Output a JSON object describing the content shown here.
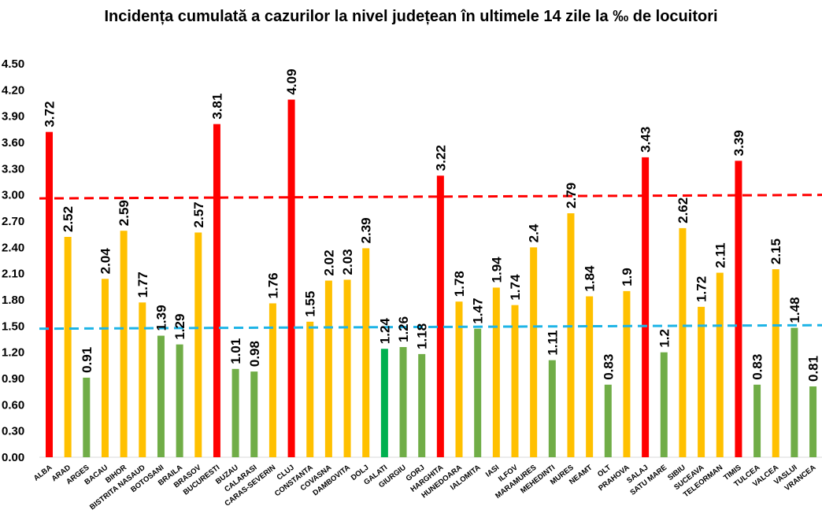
{
  "chart_data": {
    "type": "bar",
    "title": "Incidența cumulată a cazurilor la nivel județean în ultimele 14 zile la ‰ de locuitori",
    "xlabel": "",
    "ylabel": "",
    "ylim": [
      0,
      4.5
    ],
    "yticks": [
      "0.00",
      "0.30",
      "0.60",
      "0.90",
      "1.20",
      "1.50",
      "1.80",
      "2.10",
      "2.40",
      "2.70",
      "3.00",
      "3.30",
      "3.60",
      "3.90",
      "4.20",
      "4.50"
    ],
    "grid": false,
    "legend": "none",
    "colors": {
      "red": "#ff0000",
      "yellow": "#ffc000",
      "green": "#70ad47",
      "darkgreen": "#00b050",
      "threshold_high": "#ff0000",
      "threshold_low": "#1eb4e6"
    },
    "categories": [
      "ALBA",
      "ARAD",
      "ARGES",
      "BACAU",
      "BIHOR",
      "BISTRITA NASAUD",
      "BOTOSANI",
      "BRAILA",
      "BRASOV",
      "BUCURESTI",
      "BUZAU",
      "CALARASI",
      "CARAS-SEVERIN",
      "CLUJ",
      "CONSTANTA",
      "COVASNA",
      "DAMBOVITA",
      "DOLJ",
      "GALATI",
      "GIURGIU",
      "GORJ",
      "HARGHITA",
      "HUNEDOARA",
      "IALOMITA",
      "IASI",
      "ILFOV",
      "MARAMURES",
      "MEHEDINTI",
      "MURES",
      "NEAMT",
      "OLT",
      "PRAHOVA",
      "SALAJ",
      "SATU MARE",
      "SIBIU",
      "SUCEAVA",
      "TELEORMAN",
      "TIMIS",
      "TULCEA",
      "VALCEA",
      "VASLUI",
      "VRANCEA"
    ],
    "values": [
      3.72,
      2.52,
      0.91,
      2.04,
      2.59,
      1.77,
      1.39,
      1.29,
      2.57,
      3.81,
      1.01,
      0.98,
      1.76,
      4.09,
      1.55,
      2.02,
      2.03,
      2.39,
      1.24,
      1.26,
      1.18,
      3.22,
      1.78,
      1.47,
      1.94,
      1.74,
      2.4,
      1.11,
      2.79,
      1.84,
      0.83,
      1.9,
      3.43,
      1.2,
      2.62,
      1.72,
      2.11,
      3.39,
      0.83,
      2.15,
      1.48,
      0.81
    ],
    "labels": [
      "3.72",
      "2.52",
      "0.91",
      "2.04",
      "2.59",
      "1.77",
      "1.39",
      "1.29",
      "2.57",
      "3.81",
      "1.01",
      "0.98",
      "1.76",
      "4.09",
      "1.55",
      "2.02",
      "2.03",
      "2.39",
      "1.24",
      "1.26",
      "1.18",
      "3.22",
      "1.78",
      "1.47",
      "1.94",
      "1.74",
      "2.4",
      "1.11",
      "2.79",
      "1.84",
      "0.83",
      "1.9",
      "3.43",
      "1.2",
      "2.62",
      "1.72",
      "2.11",
      "3.39",
      "0.83",
      "2.15",
      "1.48",
      "0.81"
    ],
    "bar_colors": [
      "red",
      "yellow",
      "green",
      "yellow",
      "yellow",
      "yellow",
      "green",
      "green",
      "yellow",
      "red",
      "green",
      "green",
      "yellow",
      "red",
      "yellow",
      "yellow",
      "yellow",
      "yellow",
      "darkgreen",
      "green",
      "green",
      "red",
      "yellow",
      "green",
      "yellow",
      "yellow",
      "yellow",
      "green",
      "yellow",
      "yellow",
      "green",
      "yellow",
      "red",
      "green",
      "yellow",
      "yellow",
      "yellow",
      "red",
      "green",
      "yellow",
      "green",
      "green"
    ],
    "reference_lines": [
      {
        "style": "dashed",
        "color": "threshold_high",
        "y_start": 2.96,
        "y_end": 3.0
      },
      {
        "style": "dashed",
        "color": "threshold_low",
        "y_start": 1.47,
        "y_end": 1.51
      }
    ]
  }
}
